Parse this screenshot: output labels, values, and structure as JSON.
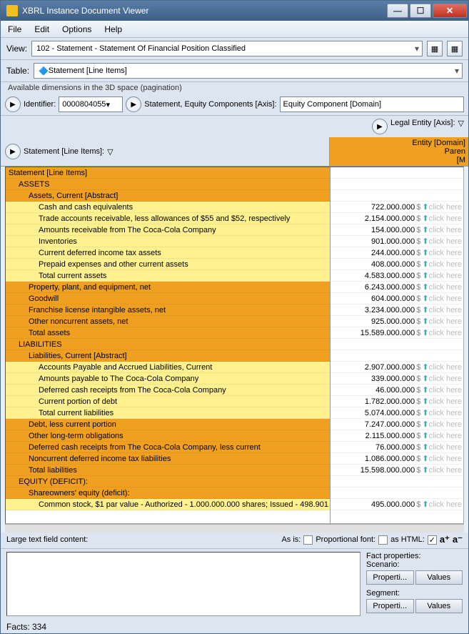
{
  "window": {
    "title": "XBRL Instance Document Viewer"
  },
  "menu": {
    "file": "File",
    "edit": "Edit",
    "options": "Options",
    "help": "Help"
  },
  "view": {
    "label": "View:",
    "value": "102 - Statement - Statement Of Financial Position Classified"
  },
  "table": {
    "label": "Table:",
    "value": "Statement [Line Items]"
  },
  "pagination": "Available dimensions in the 3D space (pagination)",
  "dim": {
    "identifier_label": "Identifier:",
    "identifier_value": "0000804055",
    "equity_label": "Statement, Equity Components [Axis]:",
    "equity_value": "Equity Component [Domain]",
    "legal_label": "Legal Entity [Axis]:",
    "entity_domain": "Entity [Domain]",
    "paren": "Paren",
    "m": "[M"
  },
  "stmt_header": "Statement [Line Items]:",
  "tri": "▽",
  "rows": [
    {
      "t": "h",
      "i": 0,
      "l": "Statement [Line Items]",
      "v": ""
    },
    {
      "t": "h",
      "i": 1,
      "l": "ASSETS",
      "v": ""
    },
    {
      "t": "h",
      "i": 2,
      "l": "Assets, Current [Abstract]",
      "v": ""
    },
    {
      "t": "d",
      "i": 3,
      "l": "Cash and cash equivalents",
      "v": "722.000.000"
    },
    {
      "t": "d",
      "i": 3,
      "l": "Trade accounts receivable, less allowances of $55 and $52, respectively",
      "v": "2.154.000.000"
    },
    {
      "t": "d",
      "i": 3,
      "l": "Amounts receivable from The Coca-Cola Company",
      "v": "154.000.000"
    },
    {
      "t": "d",
      "i": 3,
      "l": "Inventories",
      "v": "901.000.000"
    },
    {
      "t": "d",
      "i": 3,
      "l": "Current deferred income tax assets",
      "v": "244.000.000"
    },
    {
      "t": "d",
      "i": 3,
      "l": "Prepaid expenses and other current assets",
      "v": "408.000.000"
    },
    {
      "t": "d",
      "i": 3,
      "l": "Total current assets",
      "v": "4.583.000.000"
    },
    {
      "t": "h",
      "i": 2,
      "l": "Property, plant, and equipment, net",
      "v": "6.243.000.000"
    },
    {
      "t": "h",
      "i": 2,
      "l": "Goodwill",
      "v": "604.000.000"
    },
    {
      "t": "h",
      "i": 2,
      "l": "Franchise license intangible assets, net",
      "v": "3.234.000.000"
    },
    {
      "t": "h",
      "i": 2,
      "l": "Other noncurrent assets, net",
      "v": "925.000.000"
    },
    {
      "t": "h",
      "i": 2,
      "l": "Total assets",
      "v": "15.589.000.000"
    },
    {
      "t": "h",
      "i": 1,
      "l": "LIABILITIES",
      "v": ""
    },
    {
      "t": "h",
      "i": 2,
      "l": "Liabilities, Current [Abstract]",
      "v": ""
    },
    {
      "t": "d",
      "i": 3,
      "l": "Accounts Payable and Accrued Liabilities, Current",
      "v": "2.907.000.000"
    },
    {
      "t": "d",
      "i": 3,
      "l": "Amounts payable to The Coca-Cola Company",
      "v": "339.000.000"
    },
    {
      "t": "d",
      "i": 3,
      "l": "Deferred cash receipts from The Coca-Cola Company",
      "v": "46.000.000"
    },
    {
      "t": "d",
      "i": 3,
      "l": "Current portion of debt",
      "v": "1.782.000.000"
    },
    {
      "t": "d",
      "i": 3,
      "l": "Total current liabilities",
      "v": "5.074.000.000"
    },
    {
      "t": "h",
      "i": 2,
      "l": "Debt, less current portion",
      "v": "7.247.000.000"
    },
    {
      "t": "h",
      "i": 2,
      "l": "Other long-term obligations",
      "v": "2.115.000.000"
    },
    {
      "t": "h",
      "i": 2,
      "l": "Deferred cash receipts from The Coca-Cola Company, less current",
      "v": "76.000.000"
    },
    {
      "t": "h",
      "i": 2,
      "l": "Noncurrent deferred income tax liabilities",
      "v": "1.086.000.000"
    },
    {
      "t": "h",
      "i": 2,
      "l": "Total liabilities",
      "v": "15.598.000.000"
    },
    {
      "t": "h",
      "i": 1,
      "l": "EQUITY (DEFICIT):",
      "v": ""
    },
    {
      "t": "h",
      "i": 2,
      "l": "Shareowners' equity (deficit):",
      "v": ""
    },
    {
      "t": "d",
      "i": 3,
      "l": "Common stock, $1 par value - Authorized - 1.000.000.000 shares; Issued - 498.901",
      "v": "495.000.000"
    }
  ],
  "cur": "$",
  "hint": "click here",
  "arrow": "⬆",
  "options": {
    "large_text": "Large text field content:",
    "as_is": "As is:",
    "proportional": "Proportional font:",
    "as_html": "as HTML:",
    "check": "✓"
  },
  "fact": {
    "title": "Fact properties:",
    "scenario": "Scenario:",
    "segment": "Segment:",
    "props": "Properti...",
    "values": "Values"
  },
  "status": "Facts: 334",
  "colors": {
    "header": "#f0a020",
    "detail": "#fff090"
  }
}
